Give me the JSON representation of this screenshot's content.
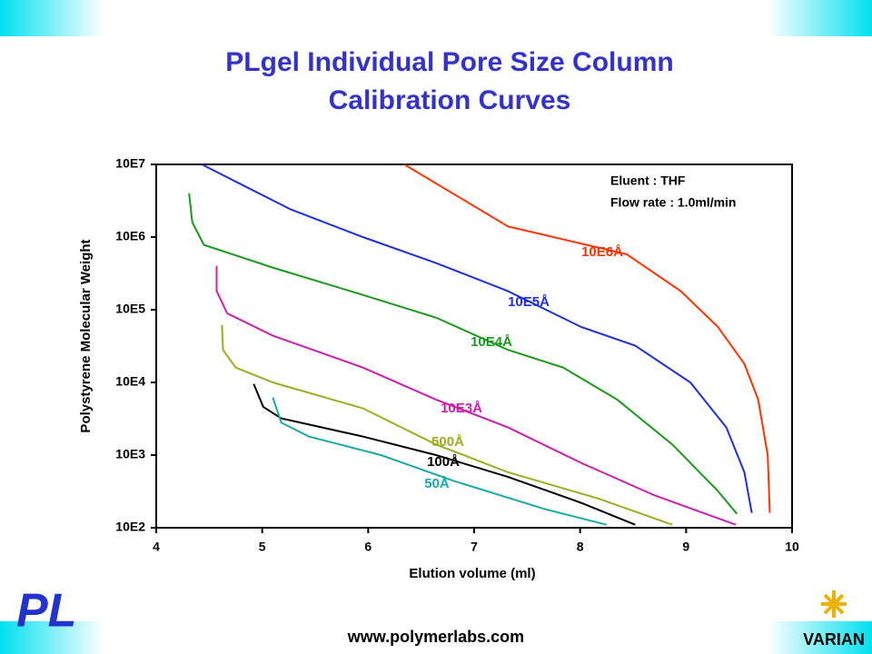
{
  "chart_data": {
    "type": "line",
    "title": "PLgel Individual Pore Size Column",
    "subtitle": "Calibration Curves",
    "xlabel": "Elution volume (ml)",
    "ylabel": "Polystyrene Molecular Weight",
    "annotations": [
      "Eluent :  THF",
      "Flow rate :  1.0ml/min"
    ],
    "xlim": [
      4,
      10
    ],
    "xticks": [
      4,
      5,
      6,
      7,
      8,
      9,
      10
    ],
    "ylim": [
      100,
      10000000
    ],
    "log_y": true,
    "yticks": [
      {
        "value": 100,
        "label": "10E2"
      },
      {
        "value": 1000,
        "label": "10E3"
      },
      {
        "value": 10000,
        "label": "10E4"
      },
      {
        "value": 100000,
        "label": "10E5"
      },
      {
        "value": 1000000,
        "label": "10E6"
      },
      {
        "value": 10000000,
        "label": "10E7"
      }
    ],
    "grid": false,
    "series": [
      {
        "name": "10E6Å",
        "color": "#ff3300",
        "x": [
          6.34,
          7.32,
          8.44,
          8.95,
          9.3,
          9.55,
          9.68,
          9.77,
          9.79
        ],
        "values": [
          10000000,
          1400000,
          580000,
          180000,
          58000,
          18000,
          5800,
          1000,
          160
        ]
      },
      {
        "name": "10E5Å",
        "color": "#1f2fe0",
        "x": [
          4.43,
          4.75,
          5.27,
          5.95,
          6.64,
          7.32,
          8.01,
          8.52,
          9.04,
          9.38,
          9.55,
          9.62
        ],
        "values": [
          10000000,
          5800000,
          2400000,
          1000000,
          440000,
          180000,
          58000,
          32000,
          10000,
          2400,
          580,
          160
        ]
      },
      {
        "name": "10E4Å",
        "color": "#1a9a1a",
        "x": [
          4.31,
          4.34,
          4.45,
          5.1,
          5.95,
          6.64,
          7.32,
          7.84,
          8.35,
          8.87,
          9.3,
          9.48
        ],
        "values": [
          4000000,
          1600000,
          780000,
          380000,
          160000,
          78000,
          28000,
          16000,
          5800,
          1400,
          320,
          155
        ]
      },
      {
        "name": "10E3Å",
        "color": "#cc1fb0",
        "x": [
          4.57,
          4.57,
          4.67,
          5.1,
          5.95,
          6.64,
          7.32,
          8.01,
          8.7,
          9.47
        ],
        "values": [
          400000,
          180000,
          89000,
          44000,
          16000,
          5800,
          2400,
          780,
          280,
          110
        ]
      },
      {
        "name": "500Å",
        "color": "#a0ac20",
        "x": [
          4.62,
          4.63,
          4.75,
          5.1,
          5.95,
          6.64,
          7.32,
          8.18,
          8.87
        ],
        "values": [
          62000,
          28000,
          16000,
          10000,
          4400,
          1400,
          580,
          250,
          110
        ]
      },
      {
        "name": "100Å",
        "color": "#000000",
        "x": [
          4.92,
          5.01,
          5.18,
          5.95,
          6.64,
          7.32,
          8.01,
          8.52
        ],
        "values": [
          9500,
          4600,
          3200,
          1800,
          1000,
          500,
          220,
          110
        ]
      },
      {
        "name": "50Å",
        "color": "#1aa8a8",
        "x": [
          5.1,
          5.18,
          5.44,
          6.12,
          6.81,
          7.67,
          8.25
        ],
        "values": [
          6200,
          2800,
          1800,
          1000,
          440,
          180,
          110
        ]
      }
    ]
  },
  "footer": {
    "url": "www.polymerlabs.com",
    "logo_left": "PL",
    "logo_right": "VARIAN"
  }
}
